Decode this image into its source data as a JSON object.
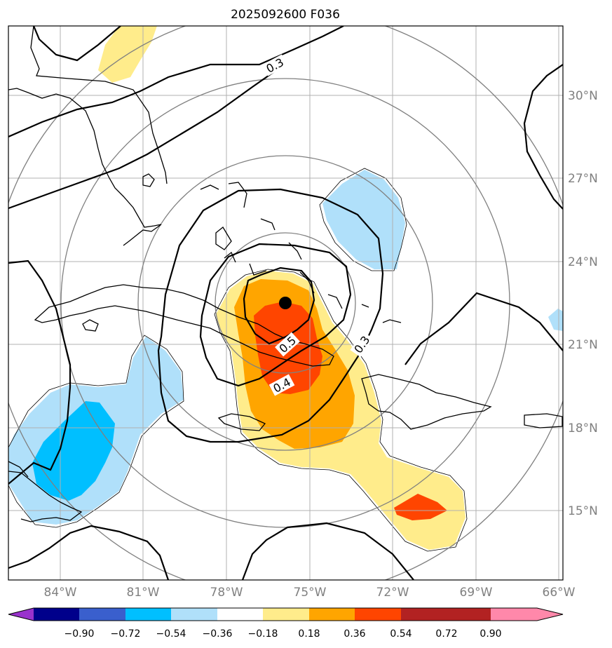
{
  "title": "2025092600 F036",
  "storm_center_marker": "black-dot",
  "lon_labels": [
    "84°W",
    "81°W",
    "78°W",
    "75°W",
    "72°W",
    "69°W",
    "66°W"
  ],
  "lat_labels": [
    "30°N",
    "27°N",
    "24°N",
    "21°N",
    "18°N",
    "15°N"
  ],
  "contour_labels": [
    "0.3",
    "0.5",
    "0.4",
    "0.3"
  ],
  "colorbar": {
    "ticks": [
      "−0.90",
      "−0.72",
      "−0.54",
      "−0.36",
      "−0.18",
      "0.18",
      "0.36",
      "0.54",
      "0.72",
      "0.90"
    ],
    "colors": [
      "#9932cc",
      "#00008b",
      "#3a5fcd",
      "#00bfff",
      "#b0e0fa",
      "#ffffff",
      "#ffec8b",
      "#ffa500",
      "#ff4500",
      "#b22222",
      "#ff88aa"
    ]
  },
  "colors": {
    "land_line": "#000000",
    "grid": "#b0b0b0",
    "range_ring": "#808080"
  }
}
